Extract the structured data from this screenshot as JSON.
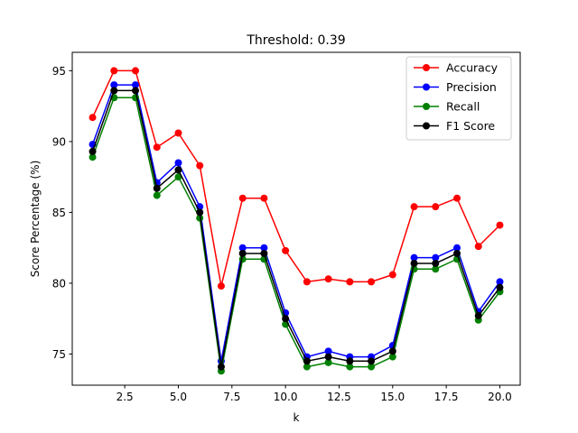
{
  "chart_data": {
    "type": "line",
    "title": "Threshold: 0.39",
    "xlabel": "k",
    "ylabel": "Score Percentage (%)",
    "x": [
      1,
      2,
      3,
      4,
      5,
      6,
      7,
      8,
      9,
      10,
      11,
      12,
      13,
      14,
      15,
      16,
      17,
      18,
      19,
      20
    ],
    "xlim": [
      0.05,
      20.95
    ],
    "ylim": [
      72.8,
      96.3
    ],
    "xticks": [
      2.5,
      5.0,
      7.5,
      10.0,
      12.5,
      15.0,
      17.5,
      20.0
    ],
    "xtick_labels": [
      "2.5",
      "5.0",
      "7.5",
      "10.0",
      "12.5",
      "15.0",
      "17.5",
      "20.0"
    ],
    "yticks": [
      75,
      80,
      85,
      90,
      95
    ],
    "ytick_labels": [
      "75",
      "80",
      "85",
      "90",
      "95"
    ],
    "grid": false,
    "legend_position": "top-right",
    "series": [
      {
        "name": "Accuracy",
        "color": "#ff0000",
        "marker": "circle",
        "values": [
          91.7,
          95.0,
          95.0,
          89.6,
          90.6,
          88.3,
          79.8,
          86.0,
          86.0,
          82.3,
          80.1,
          80.3,
          80.1,
          80.1,
          80.6,
          85.4,
          85.4,
          86.0,
          82.6,
          84.1
        ]
      },
      {
        "name": "Precision",
        "color": "#0000ff",
        "marker": "circle",
        "values": [
          89.8,
          94.0,
          94.0,
          87.1,
          88.5,
          85.4,
          74.5,
          82.5,
          82.5,
          77.9,
          74.8,
          75.2,
          74.8,
          74.8,
          75.6,
          81.8,
          81.8,
          82.5,
          78.0,
          80.1
        ]
      },
      {
        "name": "Recall",
        "color": "#008000",
        "marker": "circle",
        "values": [
          88.9,
          93.1,
          93.1,
          86.2,
          87.5,
          84.6,
          73.8,
          81.7,
          81.7,
          77.1,
          74.1,
          74.4,
          74.1,
          74.1,
          74.8,
          81.0,
          81.0,
          81.7,
          77.4,
          79.4
        ]
      },
      {
        "name": "F1 Score",
        "color": "#000000",
        "marker": "circle",
        "values": [
          89.3,
          93.6,
          93.6,
          86.7,
          88.0,
          85.0,
          74.1,
          82.1,
          82.1,
          77.5,
          74.5,
          74.8,
          74.5,
          74.5,
          75.2,
          81.4,
          81.4,
          82.1,
          77.7,
          79.7
        ]
      }
    ]
  }
}
